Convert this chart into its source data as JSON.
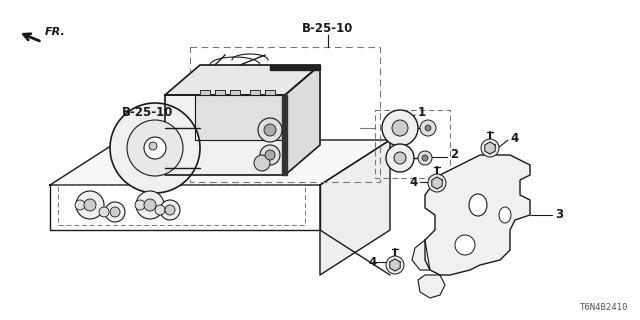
{
  "bg_color": "#ffffff",
  "lc": "#1a1a1a",
  "dc": "#777777",
  "part_code_top": "B-25-10",
  "part_code_left": "B-25-10",
  "diagram_code": "T6N4B2410",
  "fr_label": "FR.",
  "figsize": [
    6.4,
    3.2
  ],
  "dpi": 100,
  "xlim": [
    0,
    640
  ],
  "ylim": [
    0,
    320
  ]
}
